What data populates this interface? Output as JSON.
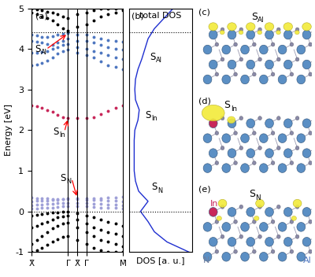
{
  "chart_data": [
    {
      "type": "scatter",
      "panel": "(a)",
      "y_label": "Energy [eV]",
      "x": [
        0,
        0.057,
        0.114,
        0.171,
        0.229,
        0.286,
        0.343,
        0.4,
        0.5,
        0.6,
        0.68,
        0.76,
        0.84,
        0.92,
        1.0
      ],
      "xlim": [
        0,
        1
      ],
      "xticks": [
        {
          "value": 0,
          "label": "X̄"
        },
        {
          "value": 0.4,
          "label": "Γ̄"
        },
        {
          "value": 0.5,
          "label": "X̄"
        },
        {
          "value": 0.6,
          "label": "Γ̄"
        },
        {
          "value": 1.0,
          "label": "M̄"
        }
      ],
      "ylim": [
        -1,
        5
      ],
      "yticks": [
        -1,
        0,
        1,
        2,
        3,
        4,
        5
      ],
      "marker": "o",
      "reference_lines": [
        0,
        4.42
      ],
      "series": [
        {
          "color": "#000000",
          "values": [
            -0.1,
            -0.08,
            -0.06,
            -0.04,
            -0.03,
            -0.02,
            -0.01,
            0.0,
            -0.05,
            -0.1,
            -0.15,
            -0.2,
            -0.25,
            -0.3,
            -0.35
          ]
        },
        {
          "color": "#000000",
          "values": [
            -0.4,
            -0.35,
            -0.3,
            -0.25,
            -0.2,
            -0.15,
            -0.12,
            -0.1,
            -0.2,
            -0.3,
            -0.4,
            -0.45,
            -0.5,
            -0.55,
            -0.6
          ]
        },
        {
          "color": "#000000",
          "values": [
            -0.8,
            -0.7,
            -0.6,
            -0.5,
            -0.42,
            -0.35,
            -0.3,
            -0.28,
            -0.4,
            -0.5,
            -0.6,
            -0.7,
            -0.75,
            -0.8,
            -0.85
          ]
        },
        {
          "color": "#000000",
          "values": [
            -1.0,
            -0.95,
            -0.9,
            -0.82,
            -0.75,
            -0.68,
            -0.62,
            -0.6,
            -0.7,
            -0.8,
            -0.9,
            -0.95,
            -1.0,
            -1.0,
            -1.0
          ]
        },
        {
          "color": "#9fa0d8",
          "values": [
            0.08,
            0.08,
            0.09,
            0.1,
            0.1,
            0.11,
            0.12,
            0.13,
            0.12,
            0.12,
            0.11,
            0.1,
            0.1,
            0.09,
            0.08
          ]
        },
        {
          "color": "#9fa0d8",
          "values": [
            0.15,
            0.16,
            0.17,
            0.18,
            0.19,
            0.2,
            0.2,
            0.21,
            0.2,
            0.2,
            0.19,
            0.18,
            0.17,
            0.16,
            0.15
          ]
        },
        {
          "color": "#9fa0d8",
          "values": [
            0.25,
            0.26,
            0.27,
            0.27,
            0.28,
            0.29,
            0.3,
            0.3,
            0.3,
            0.29,
            0.28,
            0.28,
            0.27,
            0.26,
            0.25
          ]
        },
        {
          "color": "#9fa0d8",
          "values": [
            0.34,
            0.33,
            0.32,
            0.32,
            0.31,
            0.3,
            0.3,
            0.33,
            0.33,
            0.32,
            0.32,
            0.33,
            0.34,
            0.35,
            0.36
          ]
        },
        {
          "color": "#c8285a",
          "values": [
            2.6,
            2.58,
            2.55,
            2.5,
            2.45,
            2.38,
            2.32,
            2.3,
            2.3,
            2.3,
            2.32,
            2.4,
            2.48,
            2.55,
            2.6
          ]
        },
        {
          "color": "#4f77c0",
          "values": [
            3.6,
            3.62,
            3.66,
            3.72,
            3.8,
            3.88,
            3.95,
            3.98,
            3.9,
            3.85,
            3.8,
            3.7,
            3.6,
            3.55,
            3.5
          ]
        },
        {
          "color": "#4f77c0",
          "values": [
            3.9,
            3.9,
            3.92,
            3.95,
            4.0,
            4.05,
            4.1,
            4.12,
            4.05,
            4.0,
            3.95,
            3.9,
            3.85,
            3.8,
            3.75
          ]
        },
        {
          "color": "#4f77c0",
          "values": [
            4.2,
            4.18,
            4.15,
            4.12,
            4.1,
            4.15,
            4.2,
            4.25,
            4.2,
            4.2,
            4.15,
            4.1,
            4.05,
            4.0,
            3.98
          ]
        },
        {
          "color": "#4f77c0",
          "values": [
            4.35,
            4.33,
            4.3,
            4.3,
            4.32,
            4.35,
            4.38,
            4.4,
            4.35,
            4.35,
            4.3,
            4.25,
            4.22,
            4.2,
            4.18
          ]
        },
        {
          "color": "#000000",
          "values": [
            4.9,
            4.85,
            4.8,
            4.75,
            4.7,
            4.6,
            4.5,
            4.45,
            4.55,
            4.6,
            4.7,
            4.8,
            4.85,
            4.9,
            4.95
          ]
        },
        {
          "color": "#000000",
          "values": [
            5.0,
            4.98,
            4.95,
            4.92,
            4.9,
            4.85,
            4.8,
            4.75,
            4.85,
            4.9,
            4.95,
            5.0,
            5.0,
            5.0,
            5.0
          ]
        }
      ],
      "annotations": [
        {
          "text": "S",
          "subscript": "Al",
          "x": 0.4,
          "y": 4.38
        },
        {
          "text": "S",
          "subscript": "In",
          "x": 0.4,
          "y": 2.3
        },
        {
          "text": "S",
          "subscript": "N",
          "x": 0.5,
          "y": 0.33
        }
      ]
    },
    {
      "type": "line",
      "panel": "(b)",
      "title": "total DOS",
      "x_label": "DOS [a. u.]",
      "color": "#1f2fd0",
      "tick_labels": false,
      "xlim": [
        0,
        1
      ],
      "ylim": [
        -1,
        5
      ],
      "reference_lines": [
        0,
        4.42
      ],
      "y": [
        -1,
        -0.75,
        -0.5,
        -0.25,
        0,
        0.25,
        0.5,
        0.75,
        1.0,
        1.25,
        1.5,
        1.75,
        2.0,
        2.25,
        2.5,
        2.75,
        3.0,
        3.25,
        3.5,
        3.75,
        4.0,
        4.25,
        4.5,
        4.75,
        5.0
      ],
      "values": [
        0.95,
        0.6,
        0.4,
        0.3,
        0.18,
        0.3,
        0.15,
        0.1,
        0.08,
        0.08,
        0.08,
        0.08,
        0.09,
        0.14,
        0.16,
        0.1,
        0.09,
        0.1,
        0.14,
        0.2,
        0.25,
        0.3,
        0.4,
        0.55,
        0.7
      ],
      "annotations": [
        {
          "text": "S",
          "subscript": "Al"
        },
        {
          "text": "S",
          "subscript": "In"
        },
        {
          "text": "S",
          "subscript": "N"
        }
      ]
    }
  ],
  "structures": [
    {
      "panel": "(c)",
      "state": {
        "text": "S",
        "subscript": "Al"
      }
    },
    {
      "panel": "(d)",
      "state": {
        "text": "S",
        "subscript": "In"
      }
    },
    {
      "panel": "(e)",
      "state": {
        "text": "S",
        "subscript": "N"
      },
      "atom_labels": [
        {
          "text": "In",
          "color": "#c8285a"
        },
        {
          "text": "N",
          "color": "#7080a0"
        },
        {
          "text": "Al",
          "color": "#4f77c0"
        }
      ]
    }
  ]
}
